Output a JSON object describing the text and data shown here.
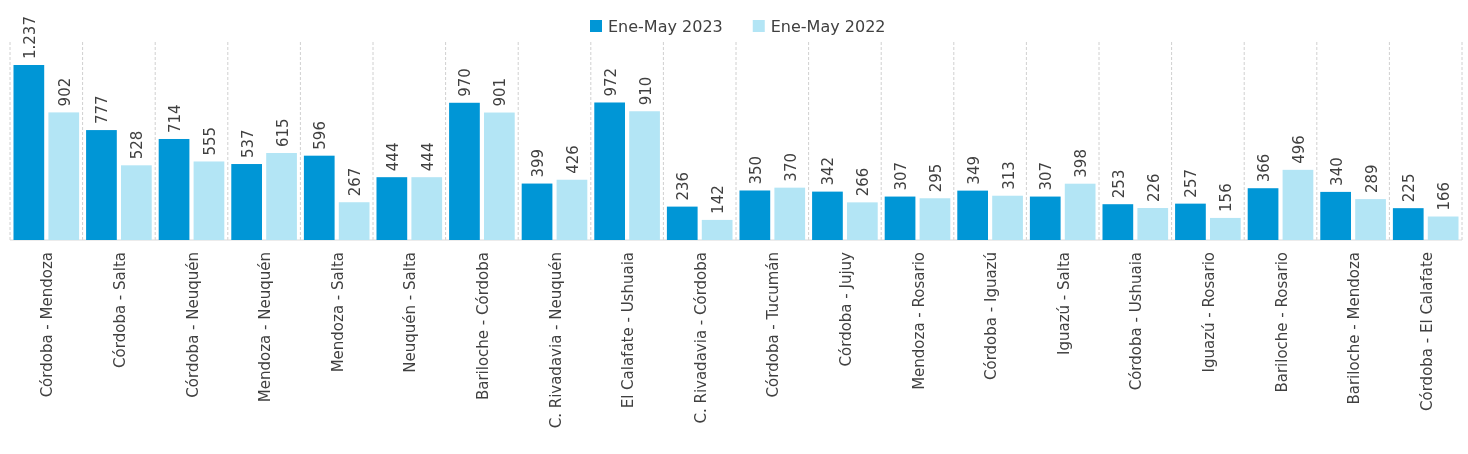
{
  "chart_data": {
    "type": "bar",
    "categories": [
      "Córdoba - Mendoza",
      "Córdoba - Salta",
      "Córdoba - Neuquén",
      "Mendoza - Neuquén",
      "Mendoza - Salta",
      "Neuquén - Salta",
      "Bariloche - Córdoba",
      "C. Rivadavia - Neuquén",
      "El Calafate - Ushuaia",
      "C. Rivadavia - Córdoba",
      "Córdoba - Tucumán",
      "Córdoba - Jujuy",
      "Mendoza - Rosario",
      "Córdoba - Iguazú",
      "Iguazú - Salta",
      "Córdoba - Ushuaia",
      "Iguazú - Rosario",
      "Bariloche - Rosario",
      "Bariloche - Mendoza",
      "Córdoba - El Calafate"
    ],
    "series": [
      {
        "name": "Ene-May 2023",
        "color": "#0096d6",
        "values": [
          1237,
          777,
          714,
          537,
          596,
          444,
          970,
          399,
          972,
          236,
          350,
          342,
          307,
          349,
          307,
          253,
          257,
          366,
          340,
          225
        ],
        "value_labels": [
          "1.237",
          "777",
          "714",
          "537",
          "596",
          "444",
          "970",
          "399",
          "972",
          "236",
          "350",
          "342",
          "307",
          "349",
          "307",
          "253",
          "257",
          "366",
          "340",
          "225"
        ]
      },
      {
        "name": "Ene-May 2022",
        "color": "#b3e5f5",
        "values": [
          902,
          528,
          555,
          615,
          267,
          444,
          901,
          426,
          910,
          142,
          370,
          266,
          295,
          313,
          398,
          226,
          156,
          496,
          289,
          166
        ],
        "value_labels": [
          "902",
          "528",
          "555",
          "615",
          "267",
          "444",
          "901",
          "426",
          "910",
          "142",
          "370",
          "266",
          "295",
          "313",
          "398",
          "226",
          "156",
          "496",
          "289",
          "166"
        ]
      }
    ],
    "legend": "top"
  }
}
